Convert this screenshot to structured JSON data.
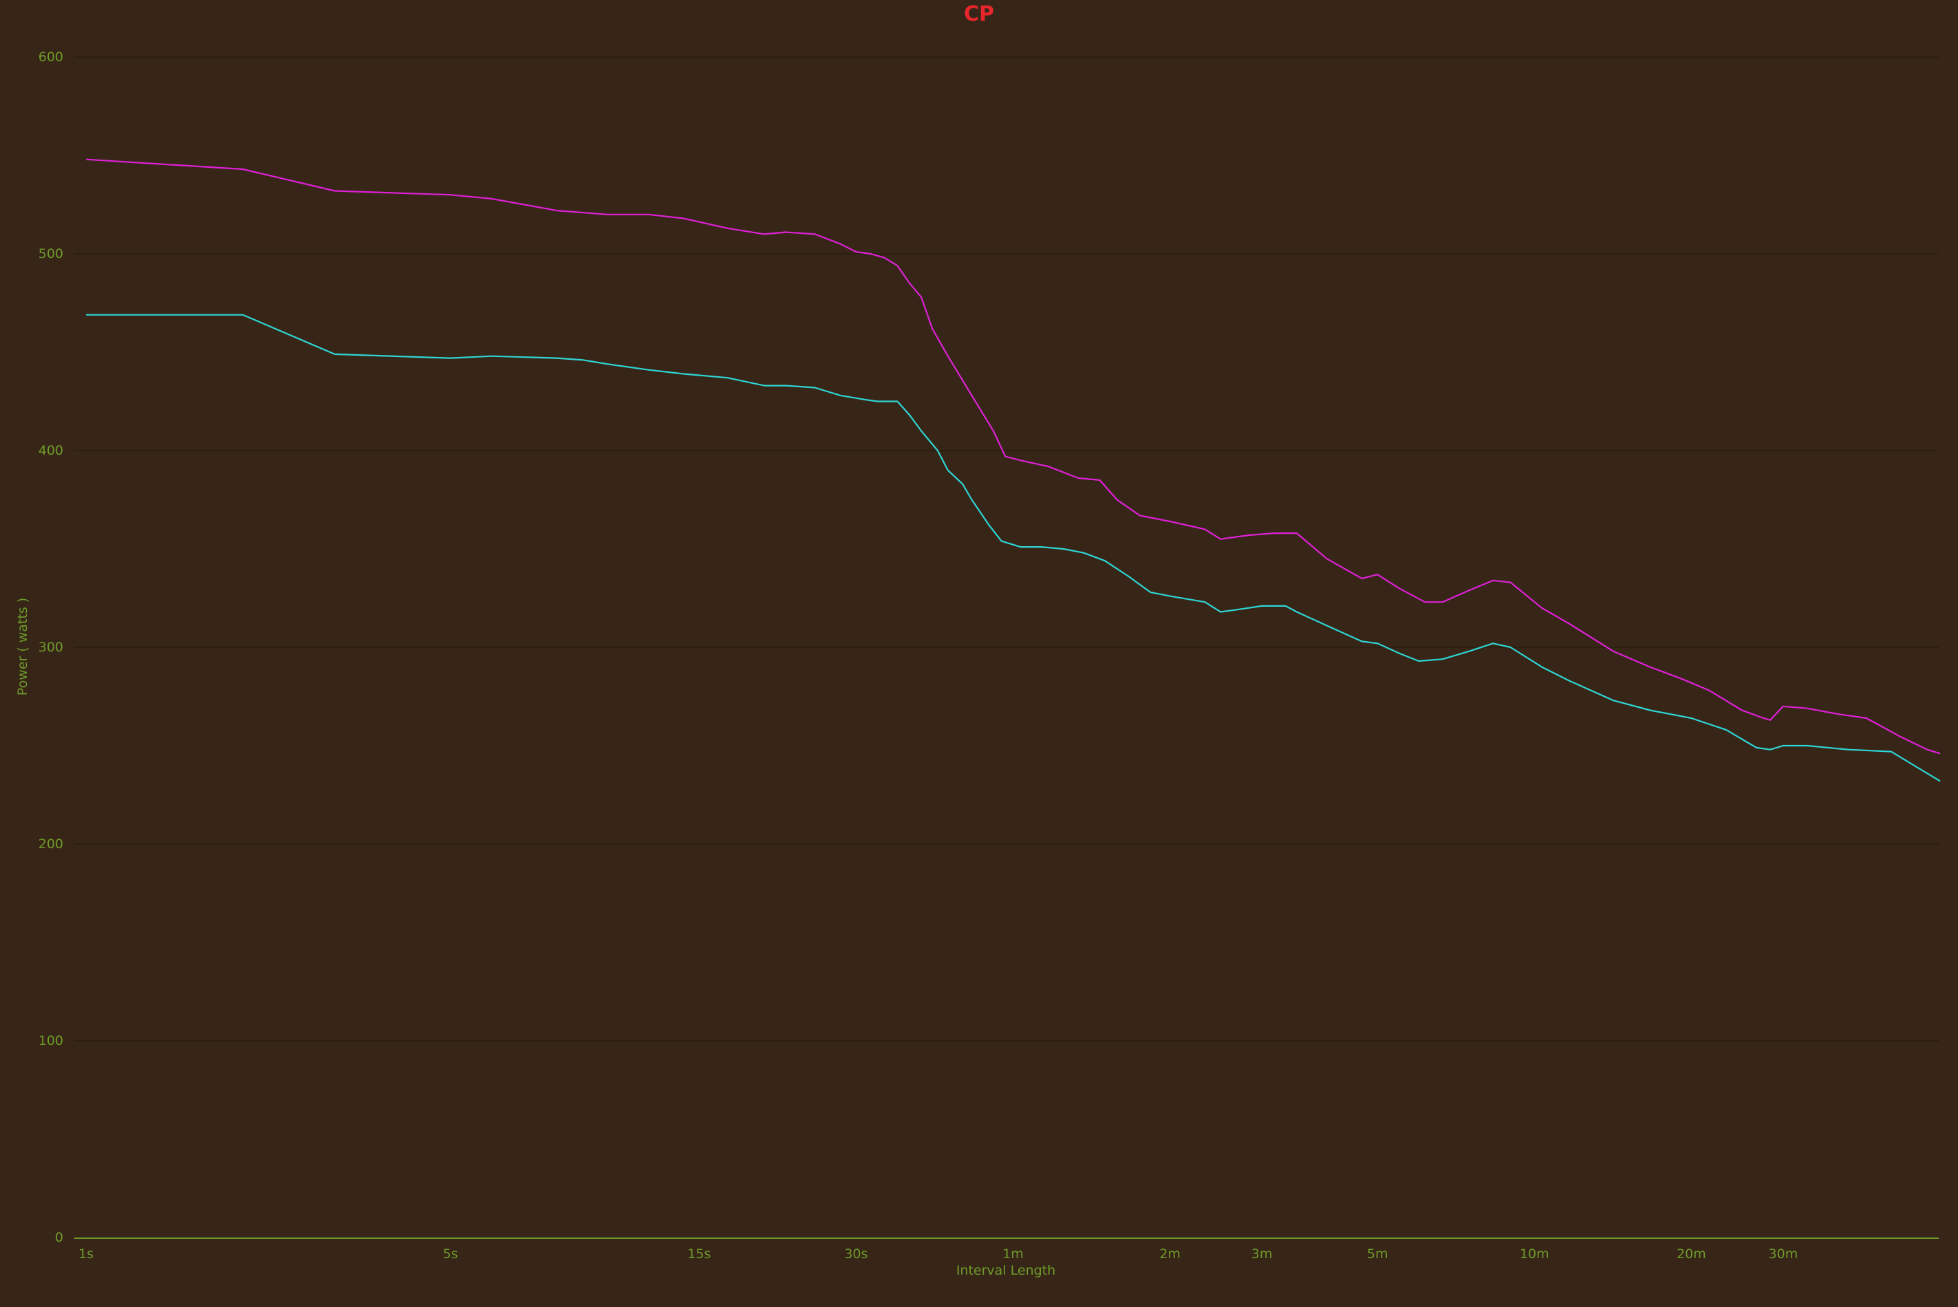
{
  "chart_data": {
    "type": "line",
    "title": "CP",
    "xlabel": "Interval Length",
    "ylabel": "Power ( watts )",
    "x_scale": "log",
    "x_unit": "seconds",
    "xlim": [
      1,
      3600
    ],
    "ylim": [
      0,
      600
    ],
    "grid": true,
    "legend": "none",
    "y_ticks": [
      0,
      100,
      200,
      300,
      400,
      500,
      600
    ],
    "x_ticks": [
      {
        "label": "1s",
        "value": 1
      },
      {
        "label": "5s",
        "value": 5
      },
      {
        "label": "15s",
        "value": 15
      },
      {
        "label": "30s",
        "value": 30
      },
      {
        "label": "1m",
        "value": 60
      },
      {
        "label": "2m",
        "value": 120
      },
      {
        "label": "3m",
        "value": 180
      },
      {
        "label": "5m",
        "value": 300
      },
      {
        "label": "10m",
        "value": 600
      },
      {
        "label": "20m",
        "value": 1200
      },
      {
        "label": "30m",
        "value": 1800
      }
    ],
    "series": [
      {
        "color": "#e020d8",
        "points": [
          [
            1,
            548
          ],
          [
            2,
            543
          ],
          [
            3,
            532
          ],
          [
            5,
            530
          ],
          [
            6,
            528
          ],
          [
            8,
            522
          ],
          [
            10,
            520
          ],
          [
            12,
            520
          ],
          [
            14,
            518
          ],
          [
            17,
            513
          ],
          [
            20,
            510
          ],
          [
            22,
            511
          ],
          [
            25,
            510
          ],
          [
            28,
            505
          ],
          [
            30,
            501
          ],
          [
            32,
            500
          ],
          [
            34,
            498
          ],
          [
            36,
            494
          ],
          [
            38,
            485
          ],
          [
            40,
            478
          ],
          [
            42,
            462
          ],
          [
            45,
            448
          ],
          [
            50,
            428
          ],
          [
            55,
            410
          ],
          [
            58,
            397
          ],
          [
            62,
            395
          ],
          [
            70,
            392
          ],
          [
            80,
            386
          ],
          [
            88,
            385
          ],
          [
            95,
            375
          ],
          [
            105,
            367
          ],
          [
            120,
            364
          ],
          [
            140,
            360
          ],
          [
            150,
            355
          ],
          [
            170,
            357
          ],
          [
            190,
            358
          ],
          [
            210,
            358
          ],
          [
            240,
            345
          ],
          [
            280,
            335
          ],
          [
            300,
            337
          ],
          [
            330,
            330
          ],
          [
            370,
            323
          ],
          [
            400,
            323
          ],
          [
            450,
            329
          ],
          [
            500,
            334
          ],
          [
            540,
            333
          ],
          [
            620,
            320
          ],
          [
            700,
            312
          ],
          [
            850,
            298
          ],
          [
            1000,
            290
          ],
          [
            1150,
            284
          ],
          [
            1300,
            278
          ],
          [
            1500,
            268
          ],
          [
            1650,
            264
          ],
          [
            1700,
            263
          ],
          [
            1800,
            270
          ],
          [
            2000,
            269
          ],
          [
            2300,
            266
          ],
          [
            2600,
            264
          ],
          [
            3000,
            255
          ],
          [
            3400,
            248
          ],
          [
            3600,
            246
          ]
        ]
      },
      {
        "color": "#2fd5d5",
        "points": [
          [
            1,
            469
          ],
          [
            2,
            469
          ],
          [
            3,
            449
          ],
          [
            5,
            447
          ],
          [
            6,
            448
          ],
          [
            8,
            447
          ],
          [
            9,
            446
          ],
          [
            10,
            444
          ],
          [
            12,
            441
          ],
          [
            14,
            439
          ],
          [
            17,
            437
          ],
          [
            20,
            433
          ],
          [
            22,
            433
          ],
          [
            25,
            432
          ],
          [
            28,
            428
          ],
          [
            31,
            426
          ],
          [
            33,
            425
          ],
          [
            36,
            425
          ],
          [
            38,
            418
          ],
          [
            40,
            410
          ],
          [
            43,
            400
          ],
          [
            45,
            390
          ],
          [
            48,
            383
          ],
          [
            50,
            375
          ],
          [
            54,
            362
          ],
          [
            57,
            354
          ],
          [
            62,
            351
          ],
          [
            68,
            351
          ],
          [
            75,
            350
          ],
          [
            82,
            348
          ],
          [
            90,
            344
          ],
          [
            100,
            336
          ],
          [
            110,
            328
          ],
          [
            120,
            326
          ],
          [
            140,
            323
          ],
          [
            150,
            318
          ],
          [
            160,
            319
          ],
          [
            180,
            321
          ],
          [
            200,
            321
          ],
          [
            210,
            318
          ],
          [
            240,
            311
          ],
          [
            280,
            303
          ],
          [
            300,
            302
          ],
          [
            330,
            297
          ],
          [
            360,
            293
          ],
          [
            400,
            294
          ],
          [
            450,
            298
          ],
          [
            500,
            302
          ],
          [
            540,
            300
          ],
          [
            620,
            290
          ],
          [
            700,
            283
          ],
          [
            850,
            273
          ],
          [
            1000,
            268
          ],
          [
            1200,
            264
          ],
          [
            1400,
            258
          ],
          [
            1600,
            249
          ],
          [
            1700,
            248
          ],
          [
            1800,
            250
          ],
          [
            2000,
            250
          ],
          [
            2400,
            248
          ],
          [
            2900,
            247
          ],
          [
            3300,
            238
          ],
          [
            3600,
            232
          ]
        ]
      }
    ]
  }
}
